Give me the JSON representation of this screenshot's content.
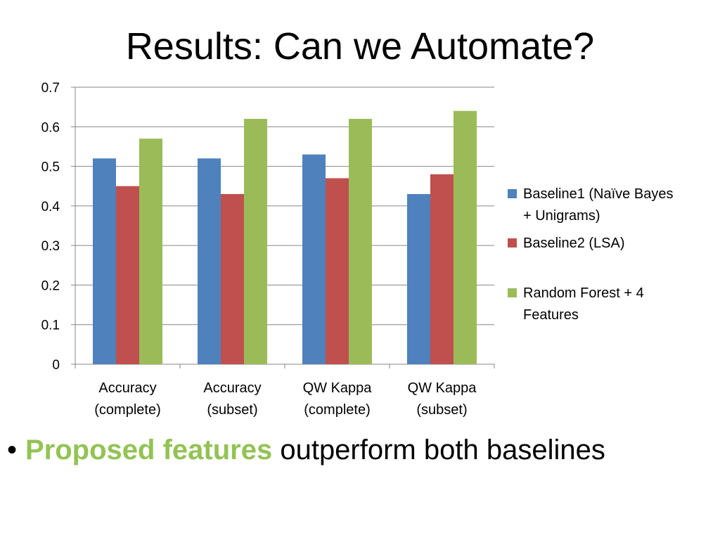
{
  "slide": {
    "title": "Results: Can we Automate?",
    "bullet": {
      "marker": "•",
      "highlight": "Proposed features",
      "rest": " outperform both baselines",
      "highlight_color": "#92c353"
    }
  },
  "chart_data": {
    "type": "bar",
    "categories": [
      [
        "Accuracy",
        "(complete)"
      ],
      [
        "Accuracy",
        "(subset)"
      ],
      [
        "QW Kappa",
        "(complete)"
      ],
      [
        "QW Kappa",
        "(subset)"
      ]
    ],
    "series": [
      {
        "name_lines": [
          "Baseline1 (Naïve Bayes",
          "+ Unigrams)"
        ],
        "color": "#4f81bd",
        "values": [
          0.52,
          0.52,
          0.53,
          0.43
        ]
      },
      {
        "name_lines": [
          "Baseline2 (LSA)"
        ],
        "color": "#c0504d",
        "values": [
          0.45,
          0.43,
          0.47,
          0.48
        ]
      },
      {
        "name_lines": [
          "Random Forest + 4",
          "Features"
        ],
        "color": "#9bbb59",
        "values": [
          0.57,
          0.62,
          0.62,
          0.64
        ]
      }
    ],
    "ylim": [
      0,
      0.7
    ],
    "yticks": [
      "0",
      "0.1",
      "0.2",
      "0.3",
      "0.4",
      "0.5",
      "0.6",
      "0.7"
    ],
    "grid": true,
    "legend_position": "right"
  }
}
